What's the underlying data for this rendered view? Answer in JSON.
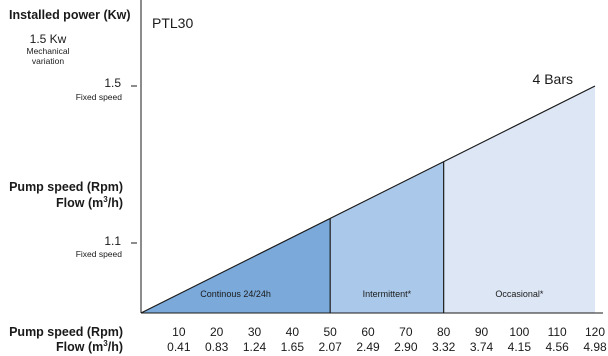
{
  "left_panel": {
    "installed_power_label": "Installed power (Kw)",
    "mechanical_value": "1.5 Kw",
    "mechanical_line1": "Mechanical",
    "mechanical_line2": "variation",
    "tick_high_value": "1.5",
    "tick_high_sub": "Fixed speed",
    "mid_speed_label": "Pump speed (Rpm)",
    "mid_flow_label_pre": "Flow (m",
    "mid_flow_label_sup": "3",
    "mid_flow_label_post": "/h)",
    "tick_low_value": "1.1",
    "tick_low_sub": "Fixed speed",
    "bottom_speed_label": "Pump speed (Rpm)",
    "bottom_flow_label_pre": "Flow (m",
    "bottom_flow_label_sup": "3",
    "bottom_flow_label_post": "/h)"
  },
  "chart_data": {
    "type": "area",
    "title": "PTL30",
    "annotation": "4 Bars",
    "x_speed": [
      "10",
      "20",
      "30",
      "40",
      "50",
      "60",
      "70",
      "80",
      "90",
      "100",
      "110",
      "120"
    ],
    "x_flow": [
      "0.41",
      "0.83",
      "1.24",
      "1.65",
      "2.07",
      "2.49",
      "2.90",
      "3.32",
      "3.74",
      "4.15",
      "4.56",
      "4.98"
    ],
    "xlim": [
      0,
      120
    ],
    "ylim": [
      0,
      1.5
    ],
    "series": [
      {
        "x": [
          0,
          120
        ],
        "values": [
          0,
          1.5
        ]
      }
    ],
    "zones": [
      {
        "label": "Continous 24/24h",
        "from": 0,
        "to": 50,
        "color": "#7aa9da"
      },
      {
        "label": "Intermittent*",
        "from": 50,
        "to": 80,
        "color": "#aac9ea"
      },
      {
        "label": "Occasional*",
        "from": 80,
        "to": 120,
        "color": "#dce6f4"
      }
    ],
    "grid": false
  }
}
